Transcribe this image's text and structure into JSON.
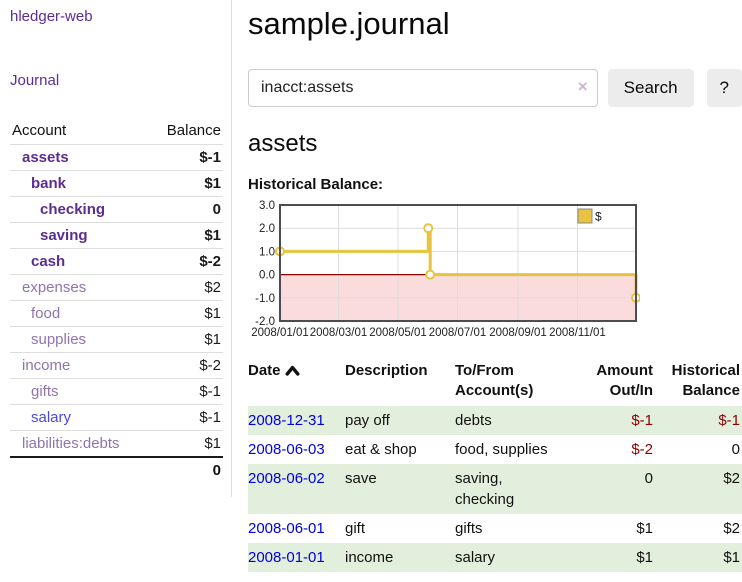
{
  "app": {
    "brand": "hledger-web"
  },
  "sidebar": {
    "nav_journal": "Journal",
    "accounts": {
      "col_account": "Account",
      "col_balance": "Balance",
      "rows": [
        {
          "name": "assets",
          "depth": 1,
          "balance": "$-1",
          "bold": true,
          "negative": true,
          "dimmed": false,
          "unvisited": false
        },
        {
          "name": "bank",
          "depth": 2,
          "balance": "$1",
          "bold": true,
          "negative": false,
          "dimmed": false,
          "unvisited": false
        },
        {
          "name": "checking",
          "depth": 3,
          "balance": "0",
          "bold": true,
          "negative": false,
          "dimmed": false,
          "unvisited": false
        },
        {
          "name": "saving",
          "depth": 3,
          "balance": "$1",
          "bold": true,
          "negative": false,
          "dimmed": false,
          "unvisited": false
        },
        {
          "name": "cash",
          "depth": 2,
          "balance": "$-2",
          "bold": true,
          "negative": true,
          "dimmed": false,
          "unvisited": false
        },
        {
          "name": "expenses",
          "depth": 1,
          "balance": "$2",
          "bold": false,
          "negative": false,
          "dimmed": true,
          "unvisited": false
        },
        {
          "name": "food",
          "depth": 2,
          "balance": "$1",
          "bold": false,
          "negative": false,
          "dimmed": true,
          "unvisited": false
        },
        {
          "name": "supplies",
          "depth": 2,
          "balance": "$1",
          "bold": false,
          "negative": false,
          "dimmed": true,
          "unvisited": false
        },
        {
          "name": "income",
          "depth": 1,
          "balance": "$-2",
          "bold": false,
          "negative": true,
          "dimmed": true,
          "unvisited": false
        },
        {
          "name": "gifts",
          "depth": 2,
          "balance": "$-1",
          "bold": false,
          "negative": true,
          "dimmed": true,
          "unvisited": false
        },
        {
          "name": "salary",
          "depth": 2,
          "balance": "$-1",
          "bold": false,
          "negative": true,
          "dimmed": true,
          "unvisited": true
        },
        {
          "name": "liabilities:debts",
          "depth": 1,
          "balance": "$1",
          "bold": false,
          "negative": false,
          "dimmed": true,
          "unvisited": false
        }
      ],
      "total": "0"
    }
  },
  "main": {
    "title": "sample.journal",
    "search": {
      "value": "inacct:assets",
      "clear": "×",
      "button": "Search",
      "help": "?"
    },
    "account_heading": "assets",
    "chart_label": "Historical Balance:"
  },
  "chart_data": {
    "type": "line",
    "title": "Historical Balance",
    "step": true,
    "series": [
      {
        "name": "$",
        "color": "#e7c33f",
        "points": [
          [
            "2008-01-01",
            1
          ],
          [
            "2008-06-01",
            2
          ],
          [
            "2008-06-03",
            0
          ],
          [
            "2008-12-31",
            -1
          ]
        ]
      }
    ],
    "x_range": [
      "2008-01-01",
      "2008-12-31"
    ],
    "x_ticks": [
      "2008/01/01",
      "2008/03/01",
      "2008/05/01",
      "2008/07/01",
      "2008/09/01",
      "2008/11/01"
    ],
    "y_ticks": [
      3.0,
      2.0,
      1.0,
      0.0,
      -1.0,
      -2.0
    ],
    "ylim": [
      -2,
      3
    ],
    "grid": true,
    "legend": {
      "label": "$",
      "position": "top-right"
    },
    "negative_fill": "#fadcdc",
    "zero_line_color": "#8b0000",
    "border_color": "#4d4d4d"
  },
  "register": {
    "headers": [
      "Date",
      "Description",
      "To/From Account(s)",
      "Amount Out/In",
      "Historical Balance"
    ],
    "sort_icon": "ascending",
    "rows": [
      {
        "date": "2008-12-31",
        "description": "pay off",
        "accounts": [
          "debts"
        ],
        "amount": "$-1",
        "amount_negative": true,
        "balance": "$-1",
        "balance_negative": true,
        "green": true
      },
      {
        "date": "2008-06-03",
        "description": "eat & shop",
        "accounts": [
          "food, supplies"
        ],
        "amount": "$-2",
        "amount_negative": true,
        "balance": "0",
        "balance_negative": false,
        "green": false
      },
      {
        "date": "2008-06-02",
        "description": "save",
        "accounts": [
          "saving,",
          "checking"
        ],
        "amount": "0",
        "amount_negative": false,
        "balance": "$2",
        "balance_negative": false,
        "green": true
      },
      {
        "date": "2008-06-01",
        "description": "gift",
        "accounts": [
          "gifts"
        ],
        "amount": "$1",
        "amount_negative": false,
        "balance": "$2",
        "balance_negative": false,
        "green": false
      },
      {
        "date": "2008-01-01",
        "description": "income",
        "accounts": [
          "salary"
        ],
        "amount": "$1",
        "amount_negative": false,
        "balance": "$1",
        "balance_negative": false,
        "green": true
      }
    ]
  }
}
